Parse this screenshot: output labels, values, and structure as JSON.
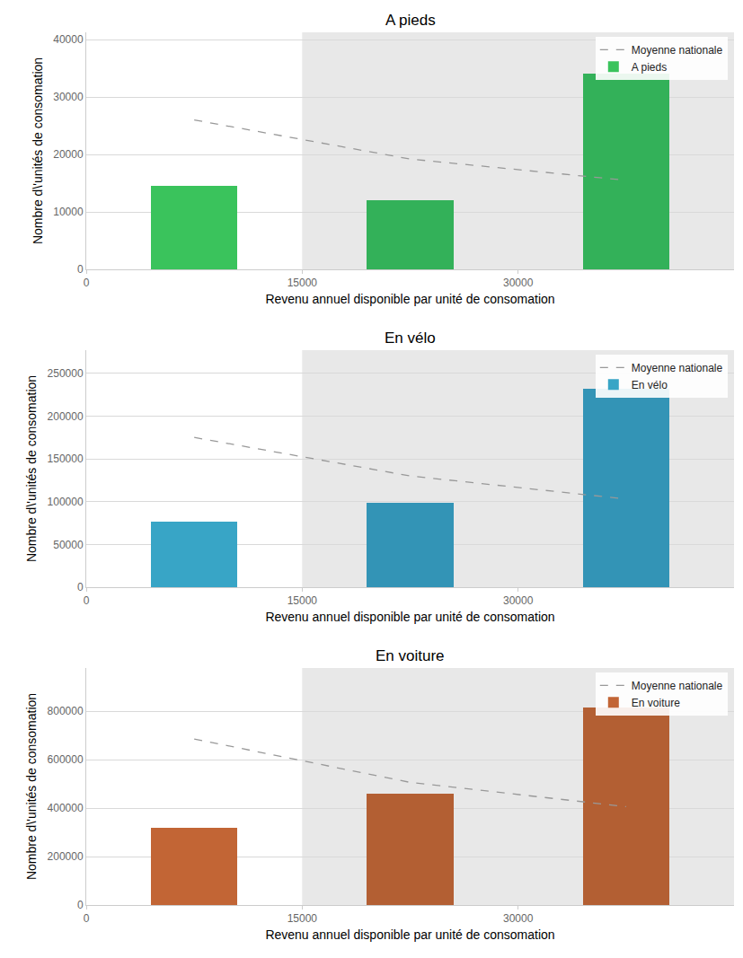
{
  "chart_data": [
    {
      "type": "bar",
      "title": "A pieds",
      "x_label": "Revenu annuel disponible par unité de consomation",
      "y_label": "Nombre d\\'unités de consomation",
      "x": [
        7500,
        22500,
        37500
      ],
      "series": [
        {
          "name": "Moyenne nationale",
          "type": "line",
          "line_style": "dashed",
          "color": "#999999",
          "values": [
            26000,
            19200,
            15500
          ]
        },
        {
          "name": "A pieds",
          "type": "bar",
          "colors": [
            "#3ac35c",
            "#33b159",
            "#33b159"
          ],
          "values": [
            14500,
            12000,
            34000
          ]
        }
      ],
      "xlim": [
        0,
        45000
      ],
      "xticks": [
        0,
        15000,
        30000
      ],
      "ylim": [
        0,
        41250
      ],
      "yticks": [
        0,
        10000,
        20000,
        30000,
        40000
      ],
      "highlight_range": [
        15000,
        45000
      ],
      "grid": true,
      "legend": "upper right"
    },
    {
      "type": "bar",
      "title": "En vélo",
      "x_label": "Revenu annuel disponible par unité de consomation",
      "y_label": "Nombre d\\'unités de consomation",
      "x": [
        7500,
        22500,
        37500
      ],
      "series": [
        {
          "name": "Moyenne nationale",
          "type": "line",
          "line_style": "dashed",
          "color": "#999999",
          "values": [
            175000,
            130000,
            103000
          ]
        },
        {
          "name": "En vélo",
          "type": "bar",
          "colors": [
            "#38a5c6",
            "#3394b6",
            "#3394b6"
          ],
          "values": [
            77000,
            99000,
            232000
          ]
        }
      ],
      "xlim": [
        0,
        45000
      ],
      "xticks": [
        0,
        15000,
        30000
      ],
      "ylim": [
        0,
        277000
      ],
      "yticks": [
        0,
        50000,
        100000,
        150000,
        200000,
        250000
      ],
      "highlight_range": [
        15000,
        45000
      ],
      "grid": true,
      "legend": "upper right"
    },
    {
      "type": "bar",
      "title": "En voiture",
      "x_label": "Revenu annuel disponible par unité de consomation",
      "y_label": "Nombre d\\'unités de consomation",
      "x": [
        7500,
        22500,
        37500
      ],
      "series": [
        {
          "name": "Moyenne nationale",
          "type": "line",
          "line_style": "dashed",
          "color": "#999999",
          "values": [
            685000,
            506000,
            406000
          ]
        },
        {
          "name": "En voiture",
          "type": "bar",
          "colors": [
            "#c26535",
            "#b35f33",
            "#b35f33"
          ],
          "values": [
            319000,
            459000,
            815000
          ]
        }
      ],
      "xlim": [
        0,
        45000
      ],
      "xticks": [
        0,
        15000,
        30000
      ],
      "ylim": [
        0,
        978000
      ],
      "yticks": [
        0,
        200000,
        400000,
        600000,
        800000
      ],
      "highlight_range": [
        15000,
        45000
      ],
      "grid": true,
      "legend": "upper right"
    }
  ]
}
